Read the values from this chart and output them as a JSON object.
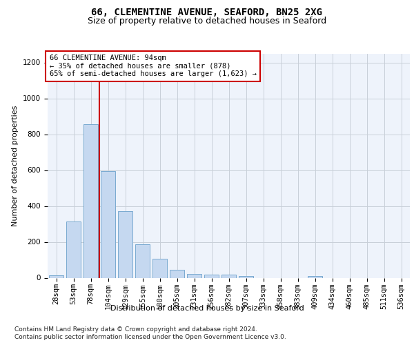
{
  "title_line1": "66, CLEMENTINE AVENUE, SEAFORD, BN25 2XG",
  "title_line2": "Size of property relative to detached houses in Seaford",
  "xlabel": "Distribution of detached houses by size in Seaford",
  "ylabel": "Number of detached properties",
  "bar_labels": [
    "28sqm",
    "53sqm",
    "78sqm",
    "104sqm",
    "129sqm",
    "155sqm",
    "180sqm",
    "205sqm",
    "231sqm",
    "256sqm",
    "282sqm",
    "307sqm",
    "333sqm",
    "358sqm",
    "383sqm",
    "409sqm",
    "434sqm",
    "460sqm",
    "485sqm",
    "511sqm",
    "536sqm"
  ],
  "bar_heights": [
    15,
    315,
    855,
    595,
    370,
    185,
    105,
    45,
    20,
    17,
    17,
    10,
    0,
    0,
    0,
    10,
    0,
    0,
    0,
    0,
    0
  ],
  "bar_color": "#c5d8f0",
  "bar_edgecolor": "#7aaad0",
  "ylim": [
    0,
    1250
  ],
  "yticks": [
    0,
    200,
    400,
    600,
    800,
    1000,
    1200
  ],
  "vline_x": 2.5,
  "vline_color": "#cc0000",
  "annotation_line1": "66 CLEMENTINE AVENUE: 94sqm",
  "annotation_line2": "← 35% of detached houses are smaller (878)",
  "annotation_line3": "65% of semi-detached houses are larger (1,623) →",
  "annotation_box_facecolor": "#ffffff",
  "annotation_box_edgecolor": "#cc0000",
  "footnote_line1": "Contains HM Land Registry data © Crown copyright and database right 2024.",
  "footnote_line2": "Contains public sector information licensed under the Open Government Licence v3.0.",
  "background_color": "#eef3fb",
  "grid_color": "#c8cfd8",
  "title1_fontsize": 10,
  "title2_fontsize": 9,
  "ylabel_fontsize": 8,
  "xlabel_fontsize": 8,
  "tick_fontsize": 7.5,
  "annot_fontsize": 7.5,
  "footnote_fontsize": 6.5
}
